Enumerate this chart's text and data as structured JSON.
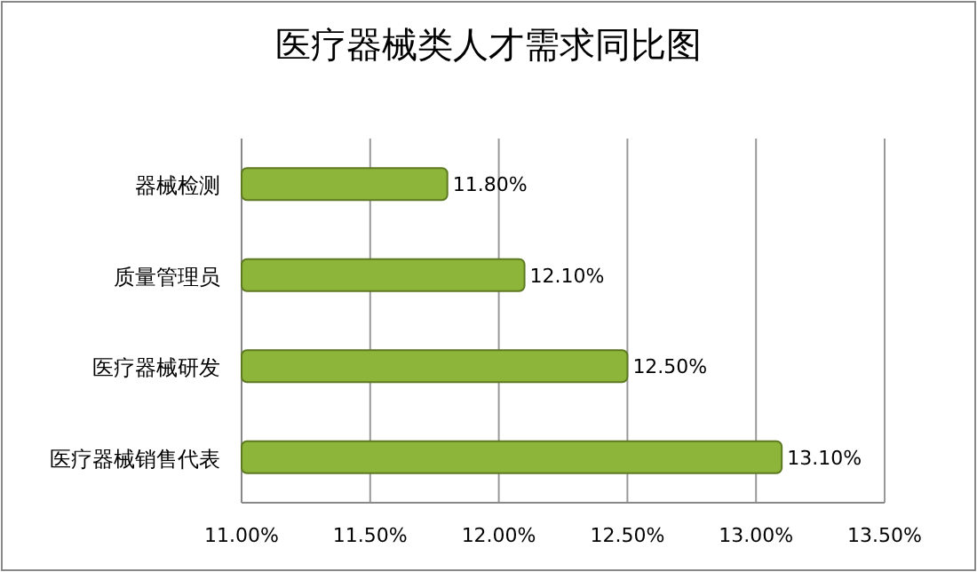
{
  "chart_data": {
    "type": "bar",
    "orientation": "horizontal",
    "title": "医疗器械类人才需求同比图",
    "categories": [
      "器械检测",
      "质量管理员",
      "医疗器械研发",
      "医疗器械销售代表"
    ],
    "values": [
      11.8,
      12.1,
      12.5,
      13.1
    ],
    "value_labels": [
      "11.80%",
      "12.10%",
      "12.50%",
      "13.10%"
    ],
    "color": "#8db53a",
    "xlim": [
      11,
      13.5
    ],
    "xticks": [
      {
        "value": 11,
        "label": "11.00%"
      },
      {
        "value": 11.5,
        "label": "11.50%"
      },
      {
        "value": 12,
        "label": "12.00%"
      },
      {
        "value": 12.5,
        "label": "12.50%"
      },
      {
        "value": 13,
        "label": "13.00%"
      },
      {
        "value": 13.5,
        "label": "13.50%"
      }
    ],
    "grid": "x"
  }
}
